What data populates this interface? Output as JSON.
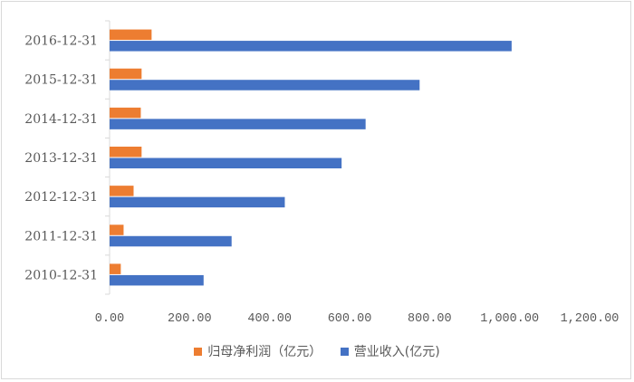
{
  "chart_data": {
    "type": "bar",
    "orientation": "horizontal",
    "categories": [
      "2010-12-31",
      "2011-12-31",
      "2012-12-31",
      "2013-12-31",
      "2014-12-31",
      "2015-12-31",
      "2016-12-31"
    ],
    "series": [
      {
        "name": "归母净利润（亿元）",
        "color": "#ed7d31",
        "values": [
          28,
          35,
          60,
          80,
          78,
          80,
          105
        ]
      },
      {
        "name": "营业收入(亿元)",
        "color": "#4472c4",
        "values": [
          235,
          305,
          438,
          580,
          640,
          775,
          1005
        ]
      }
    ],
    "xlim": [
      0,
      1200
    ],
    "x_ticks": [
      "0.00",
      "200.00",
      "400.00",
      "600.00",
      "800.00",
      "1,000.00",
      "1,200.00"
    ],
    "grid": false,
    "legend_position": "bottom",
    "title": "",
    "xlabel": "",
    "ylabel": ""
  }
}
